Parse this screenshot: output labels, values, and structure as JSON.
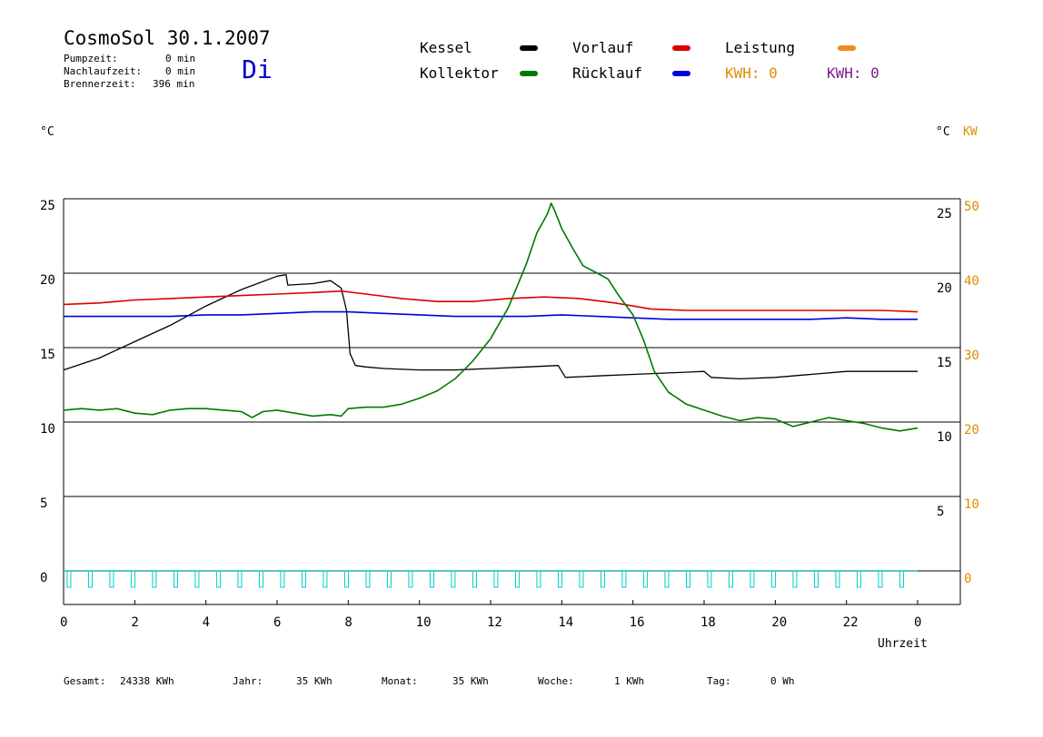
{
  "header": {
    "title": "CosmoSol 30.1.2007",
    "day": "Di",
    "stats": [
      {
        "label": "Pumpzeit:",
        "value": "0 min"
      },
      {
        "label": "Nachlaufzeit:",
        "value": "0 min"
      },
      {
        "label": "Brennerzeit:",
        "value": "396 min"
      }
    ]
  },
  "legend": {
    "kessel": {
      "label": "Kessel",
      "color": "#000000"
    },
    "vorlauf": {
      "label": "Vorlauf",
      "color": "#dd0000"
    },
    "leistung": {
      "label": "Leistung",
      "color": "#f08a1c"
    },
    "kollektor": {
      "label": "Kollektor",
      "color": "#007a00"
    },
    "ruecklauf": {
      "label": "Rücklauf",
      "color": "#0000dd"
    },
    "kwh1": "KWH: 0",
    "kwh2": "KWH: 0"
  },
  "axes": {
    "left_unit": "°C",
    "right_unit": "°C",
    "right_unit_kw": "KW",
    "xlabel": "Uhrzeit"
  },
  "footer": {
    "gesamt_label": "Gesamt:",
    "gesamt_value": "24338 KWh",
    "jahr_label": "Jahr:",
    "jahr_value": "35 KWh",
    "monat_label": "Monat:",
    "monat_value": "35 KWh",
    "woche_label": "Woche:",
    "woche_value": "1 KWh",
    "tag_label": "Tag:",
    "tag_value": "0 Wh"
  },
  "chart_data": {
    "type": "line",
    "title": "CosmoSol 30.1.2007",
    "xlabel": "Uhrzeit",
    "ylabel": "°C",
    "xlim": [
      0,
      24
    ],
    "ylim": [
      -1.5,
      26
    ],
    "x_ticks": [
      "0",
      "2",
      "4",
      "6",
      "8",
      "10",
      "12",
      "14",
      "16",
      "18",
      "20",
      "22",
      "0"
    ],
    "y_ticks_left": [
      "25",
      "20",
      "15",
      "10",
      "5",
      "0"
    ],
    "y_ticks_right_temp": [
      "25",
      "20",
      "15",
      "10",
      "5"
    ],
    "y_ticks_right_kw": [
      "50",
      "40",
      "30",
      "20",
      "10",
      "0"
    ],
    "grid": true,
    "series": [
      {
        "name": "Kessel",
        "color": "#000000",
        "points": [
          [
            0,
            13.5
          ],
          [
            1,
            14.3
          ],
          [
            2,
            15.4
          ],
          [
            3,
            16.5
          ],
          [
            4,
            17.8
          ],
          [
            5,
            18.9
          ],
          [
            6,
            19.8
          ],
          [
            6.25,
            19.9
          ],
          [
            6.3,
            19.2
          ],
          [
            7,
            19.3
          ],
          [
            7.5,
            19.5
          ],
          [
            7.8,
            19.0
          ],
          [
            7.95,
            17.5
          ],
          [
            8.05,
            14.6
          ],
          [
            8.2,
            13.8
          ],
          [
            8.5,
            13.7
          ],
          [
            9,
            13.6
          ],
          [
            10,
            13.5
          ],
          [
            11,
            13.5
          ],
          [
            12,
            13.6
          ],
          [
            13,
            13.7
          ],
          [
            13.9,
            13.8
          ],
          [
            14.1,
            13.0
          ],
          [
            15,
            13.1
          ],
          [
            16,
            13.2
          ],
          [
            17,
            13.3
          ],
          [
            18,
            13.4
          ],
          [
            18.2,
            13.0
          ],
          [
            19,
            12.9
          ],
          [
            20,
            13.0
          ],
          [
            21,
            13.2
          ],
          [
            22,
            13.4
          ],
          [
            23,
            13.4
          ],
          [
            24,
            13.4
          ]
        ]
      },
      {
        "name": "Vorlauf",
        "color": "#dd0000",
        "points": [
          [
            0,
            17.9
          ],
          [
            1,
            18.0
          ],
          [
            2,
            18.2
          ],
          [
            3,
            18.3
          ],
          [
            4,
            18.4
          ],
          [
            5,
            18.5
          ],
          [
            6,
            18.6
          ],
          [
            7,
            18.7
          ],
          [
            7.8,
            18.8
          ],
          [
            8.5,
            18.6
          ],
          [
            9.5,
            18.3
          ],
          [
            10.5,
            18.1
          ],
          [
            11.5,
            18.1
          ],
          [
            12.5,
            18.3
          ],
          [
            13.5,
            18.4
          ],
          [
            14.5,
            18.3
          ],
          [
            15.5,
            18.0
          ],
          [
            16.5,
            17.6
          ],
          [
            17.5,
            17.5
          ],
          [
            18.5,
            17.5
          ],
          [
            20,
            17.5
          ],
          [
            21,
            17.5
          ],
          [
            22,
            17.5
          ],
          [
            23,
            17.5
          ],
          [
            24,
            17.4
          ]
        ]
      },
      {
        "name": "Rücklauf",
        "color": "#0000dd",
        "points": [
          [
            0,
            17.1
          ],
          [
            1,
            17.1
          ],
          [
            2,
            17.1
          ],
          [
            3,
            17.1
          ],
          [
            4,
            17.2
          ],
          [
            5,
            17.2
          ],
          [
            6,
            17.3
          ],
          [
            7,
            17.4
          ],
          [
            8,
            17.4
          ],
          [
            9,
            17.3
          ],
          [
            10,
            17.2
          ],
          [
            11,
            17.1
          ],
          [
            12,
            17.1
          ],
          [
            13,
            17.1
          ],
          [
            14,
            17.2
          ],
          [
            15,
            17.1
          ],
          [
            16,
            17.0
          ],
          [
            17,
            16.9
          ],
          [
            18,
            16.9
          ],
          [
            19,
            16.9
          ],
          [
            20,
            16.9
          ],
          [
            21,
            16.9
          ],
          [
            22,
            17.0
          ],
          [
            23,
            16.9
          ],
          [
            24,
            16.9
          ]
        ]
      },
      {
        "name": "Kollektor",
        "color": "#007a00",
        "points": [
          [
            0,
            10.8
          ],
          [
            0.5,
            10.9
          ],
          [
            1,
            10.8
          ],
          [
            1.5,
            10.9
          ],
          [
            2,
            10.6
          ],
          [
            2.5,
            10.5
          ],
          [
            3,
            10.8
          ],
          [
            3.5,
            10.9
          ],
          [
            4,
            10.9
          ],
          [
            4.5,
            10.8
          ],
          [
            5,
            10.7
          ],
          [
            5.3,
            10.3
          ],
          [
            5.6,
            10.7
          ],
          [
            6,
            10.8
          ],
          [
            6.5,
            10.6
          ],
          [
            7,
            10.4
          ],
          [
            7.5,
            10.5
          ],
          [
            7.8,
            10.4
          ],
          [
            8,
            10.9
          ],
          [
            8.5,
            11.0
          ],
          [
            9,
            11.0
          ],
          [
            9.5,
            11.2
          ],
          [
            10,
            11.6
          ],
          [
            10.5,
            12.1
          ],
          [
            11,
            12.9
          ],
          [
            11.5,
            14.1
          ],
          [
            12,
            15.6
          ],
          [
            12.5,
            17.7
          ],
          [
            13,
            20.6
          ],
          [
            13.3,
            22.7
          ],
          [
            13.6,
            24.0
          ],
          [
            13.7,
            24.7
          ],
          [
            13.8,
            24.2
          ],
          [
            14,
            23.0
          ],
          [
            14.3,
            21.7
          ],
          [
            14.6,
            20.5
          ],
          [
            15,
            20.0
          ],
          [
            15.3,
            19.6
          ],
          [
            15.6,
            18.5
          ],
          [
            16,
            17.2
          ],
          [
            16.3,
            15.5
          ],
          [
            16.6,
            13.4
          ],
          [
            17,
            12.0
          ],
          [
            17.5,
            11.2
          ],
          [
            18,
            10.8
          ],
          [
            18.5,
            10.4
          ],
          [
            19,
            10.1
          ],
          [
            19.5,
            10.3
          ],
          [
            20,
            10.2
          ],
          [
            20.5,
            9.7
          ],
          [
            21,
            10.0
          ],
          [
            21.5,
            10.3
          ],
          [
            22,
            10.1
          ],
          [
            22.5,
            9.9
          ],
          [
            23,
            9.6
          ],
          [
            23.5,
            9.4
          ],
          [
            24,
            9.6
          ]
        ]
      },
      {
        "name": "Leistung",
        "color": "#f08a1c",
        "points": [
          [
            0,
            0
          ],
          [
            24,
            0
          ]
        ]
      }
    ]
  }
}
